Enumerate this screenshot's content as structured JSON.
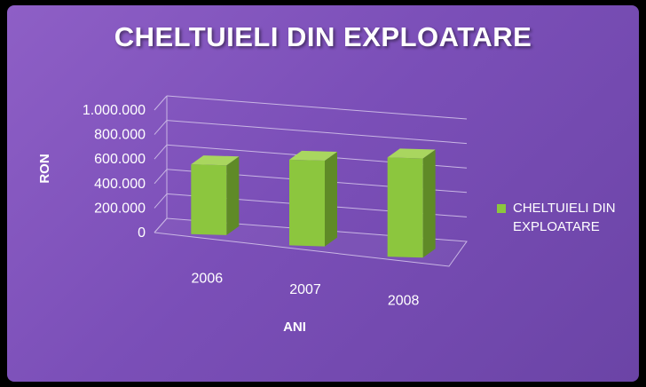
{
  "chart_data": {
    "type": "bar",
    "title": "CHELTUIELI DIN EXPLOATARE",
    "xlabel": "ANI",
    "ylabel": "RON",
    "categories": [
      "2006",
      "2007",
      "2008"
    ],
    "series": [
      {
        "name": "CHELTUIELI DIN EXPLOATARE",
        "values": [
          570000,
          700000,
          810000
        ]
      }
    ],
    "ylim": [
      0,
      1000000
    ],
    "yticks": [
      0,
      200000,
      400000,
      600000,
      800000,
      1000000
    ],
    "ytick_labels": [
      "0",
      "200.000",
      "400.000",
      "600.000",
      "800.000",
      "1.000.000"
    ],
    "grid": true,
    "legend_position": "right",
    "three_d": true,
    "colors": {
      "bar_front": "#8cc63e",
      "bar_side": "#5f8a27",
      "bar_top": "#a9d65f",
      "background": "#7b4fb8",
      "grid": "#c9b6e4"
    }
  }
}
